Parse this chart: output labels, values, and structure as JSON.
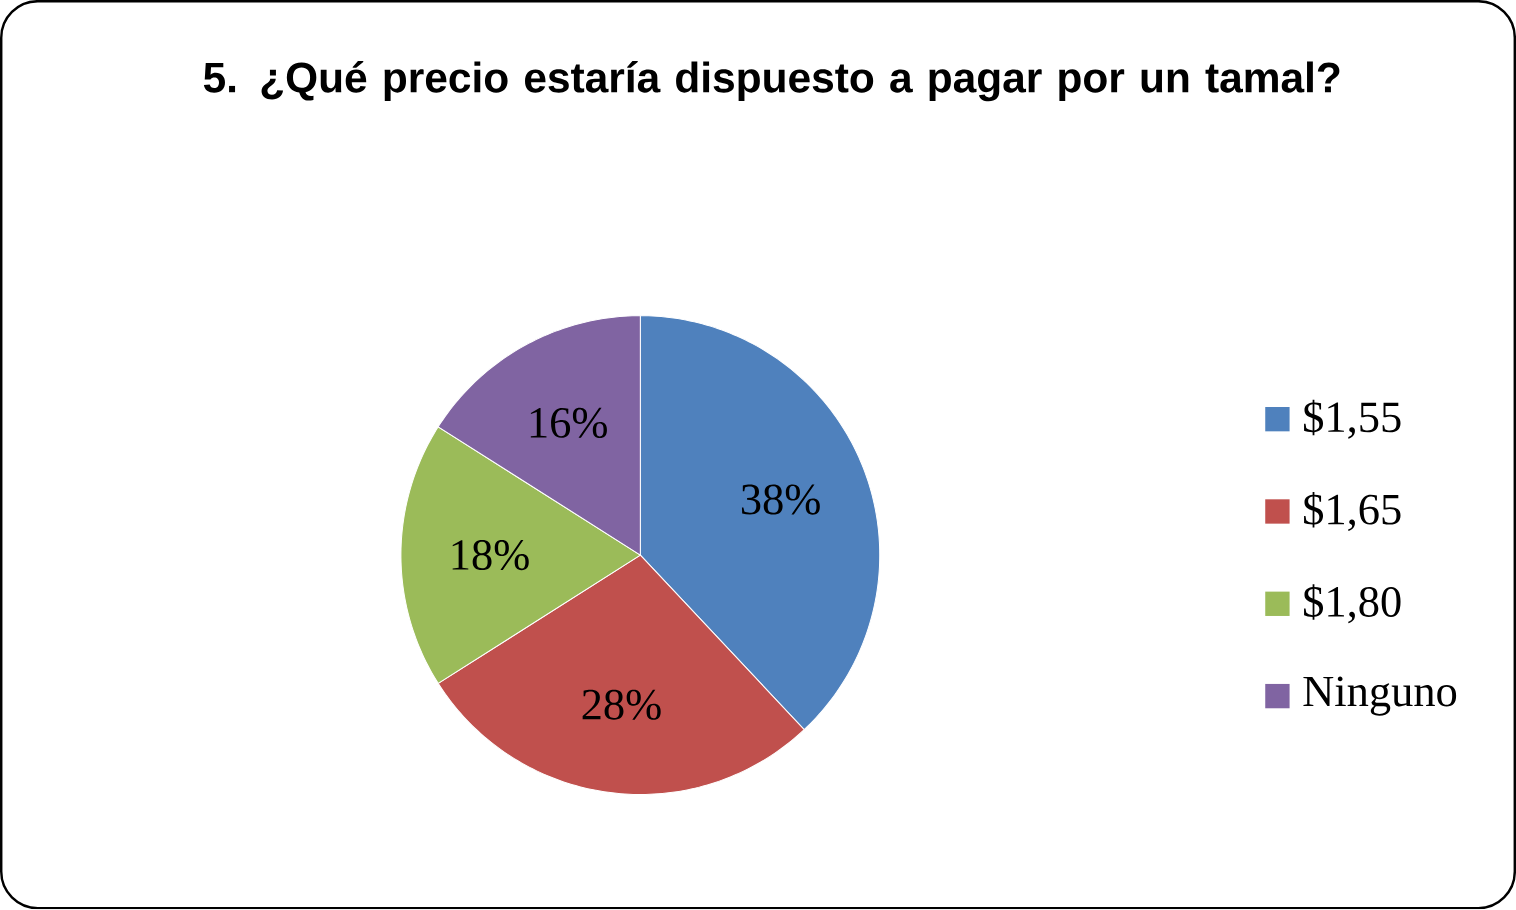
{
  "chart_data": {
    "type": "pie",
    "title": "5. ¿Qué precio estaría dispuesto a pagar por un tamal?",
    "categories": [
      "$1,55",
      "$1,65",
      "$1,80",
      "Ninguno"
    ],
    "values": [
      38,
      28,
      18,
      16
    ],
    "colors": [
      "#4f81bd",
      "#c0504d",
      "#9bbb59",
      "#8064a2"
    ],
    "value_labels": [
      "38%",
      "28%",
      "18%",
      "16%"
    ],
    "legend": "right"
  }
}
